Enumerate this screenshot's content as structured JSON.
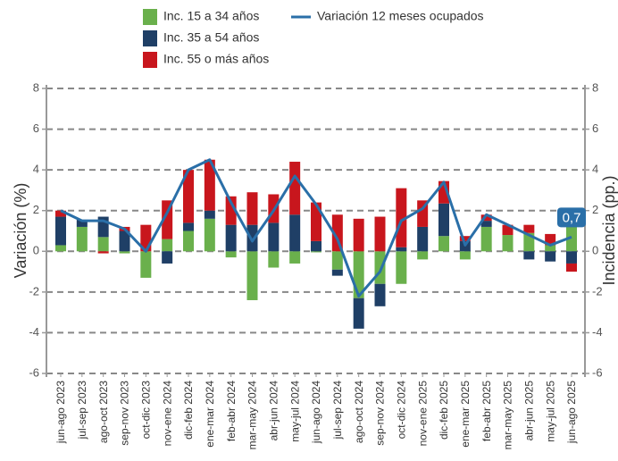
{
  "chart_data": {
    "type": "stacked-bar-line",
    "categories": [
      "jun-ago 2023",
      "jul-sep 2023",
      "ago-oct 2023",
      "sep-nov 2023",
      "oct-dic 2023",
      "nov-ene 2024",
      "dic-feb 2024",
      "ene-mar 2024",
      "feb-abr 2024",
      "mar-may 2024",
      "abr-jun 2024",
      "may-jul 2024",
      "jun-ago 2024",
      "jul-sep 2024",
      "ago-oct 2024",
      "sep-nov 2024",
      "oct-dic 2024",
      "nov-ene 2025",
      "dic-feb 2025",
      "ene-mar 2025",
      "feb-abr 2025",
      "mar-may 2025",
      "abr-jun 2025",
      "may-jul 2025",
      "jun-ago 2025"
    ],
    "series": [
      {
        "name": "Inc. 15 a 34 años",
        "color": "#6ab04c",
        "kind": "bar",
        "values": [
          0.3,
          1.2,
          0.7,
          -0.1,
          -1.3,
          0.6,
          1.0,
          1.6,
          -0.3,
          -2.4,
          -0.8,
          -0.6,
          -0.05,
          -0.9,
          -2.3,
          -1.6,
          -1.6,
          -0.4,
          0.75,
          -0.4,
          1.2,
          0.8,
          0.9,
          0.3,
          1.6
        ]
      },
      {
        "name": "Inc. 35 a 54 años",
        "color": "#1f3f66",
        "kind": "bar",
        "values": [
          1.4,
          0.35,
          1.0,
          1.0,
          0,
          -0.6,
          0.4,
          0.4,
          1.3,
          1.3,
          1.4,
          1.8,
          0.5,
          -0.3,
          -1.5,
          -1.1,
          0.2,
          1.2,
          1.6,
          0.5,
          0.3,
          0,
          -0.4,
          -0.5,
          -0.6
        ]
      },
      {
        "name": "Inc. 55 o más años",
        "color": "#c8161d",
        "kind": "bar",
        "values": [
          0.3,
          0,
          -0.1,
          0.2,
          1.3,
          1.9,
          2.6,
          2.5,
          1.4,
          1.6,
          1.4,
          2.6,
          1.9,
          1.8,
          1.6,
          1.7,
          2.9,
          1.3,
          1.1,
          0.25,
          0.3,
          0.5,
          0.4,
          0.55,
          -0.4
        ]
      },
      {
        "name": "Variación 12 meses ocupados",
        "color": "#2a6fa8",
        "kind": "line",
        "axis": "y2",
        "values": [
          2.0,
          1.5,
          1.5,
          1.1,
          0.0,
          1.9,
          4.0,
          4.5,
          2.4,
          0.5,
          2.0,
          3.7,
          2.3,
          0.6,
          -2.2,
          -1.0,
          1.5,
          2.1,
          3.4,
          0.3,
          1.8,
          1.3,
          0.8,
          0.3,
          0.7
        ],
        "value_labels": [
          null,
          null,
          null,
          null,
          null,
          null,
          null,
          null,
          null,
          null,
          null,
          null,
          null,
          null,
          null,
          null,
          null,
          null,
          null,
          null,
          null,
          null,
          null,
          null,
          "0,7"
        ]
      }
    ],
    "ylabel": "Variación (%)",
    "y2label": "Incidencia (pp.)",
    "ylim": [
      -6,
      8
    ],
    "yticks": [
      -6,
      -4,
      -2,
      0,
      2,
      4,
      6,
      8
    ],
    "y2lim": [
      -6,
      8
    ],
    "y2ticks": [
      -6,
      -4,
      -2,
      0,
      2,
      4,
      6,
      8
    ],
    "grid": true
  }
}
